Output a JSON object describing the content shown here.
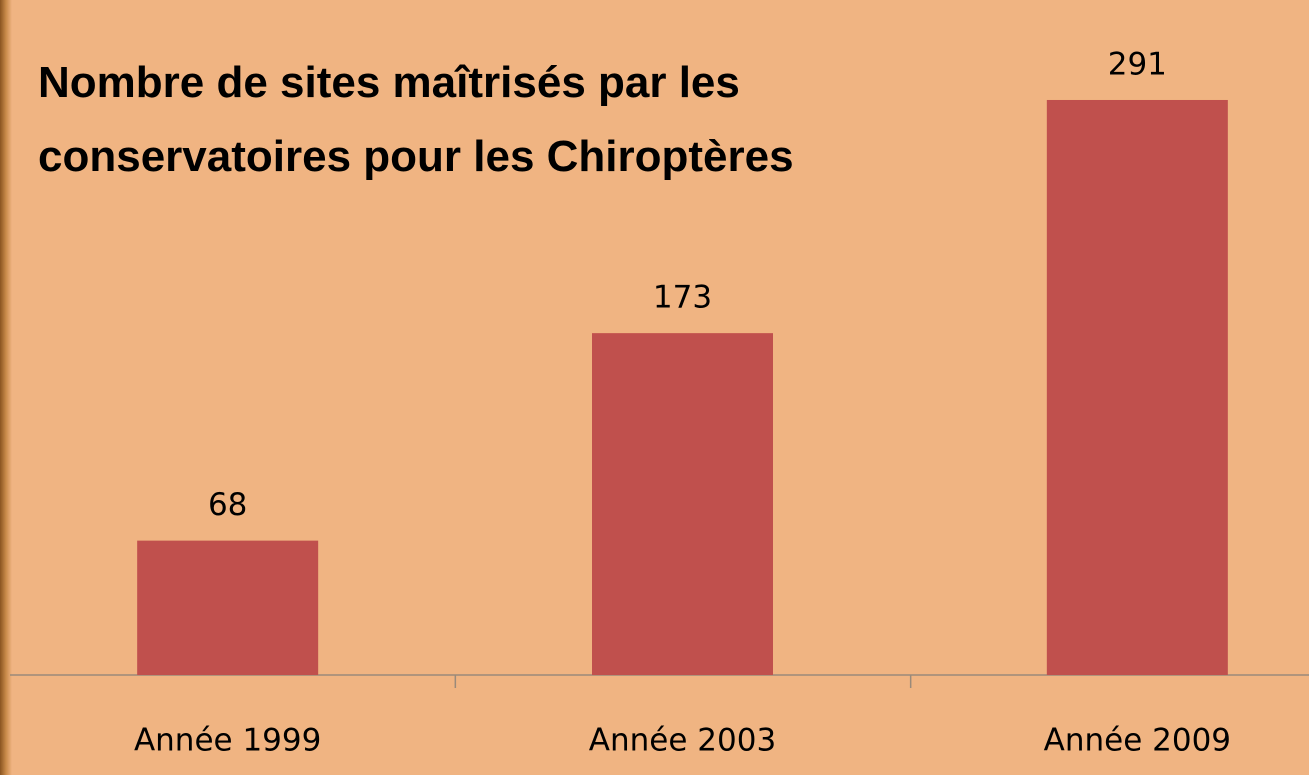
{
  "chart_data": {
    "type": "bar",
    "title": "Nombre de sites maîtrisés par les conservatoires pour les Chiroptères",
    "categories": [
      "Année 1999",
      "Année 2003",
      "Année 2009"
    ],
    "values": [
      68,
      173,
      291
    ],
    "color": "#c0504d"
  }
}
